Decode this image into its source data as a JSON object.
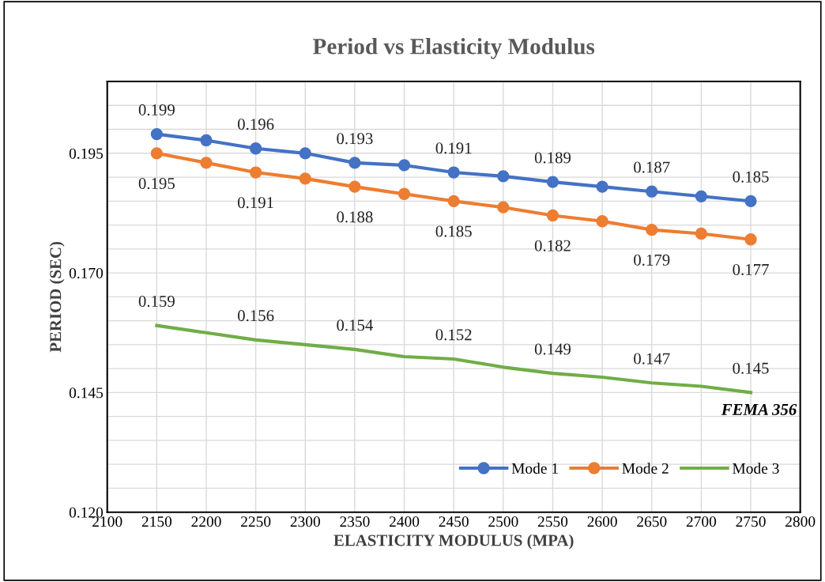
{
  "chart_data": {
    "type": "line",
    "title": "Period vs Elasticity Modulus",
    "xlabel": "ELASTICITY MODULUS (MPA)",
    "ylabel": "PERIOD (SEC)",
    "x": [
      2150,
      2200,
      2250,
      2300,
      2350,
      2400,
      2450,
      2500,
      2550,
      2600,
      2650,
      2700,
      2750
    ],
    "series": [
      {
        "name": "Mode 1",
        "color": "#4472c4",
        "marker": "circle",
        "values": [
          0.199,
          0.1977,
          0.196,
          0.195,
          0.193,
          0.1925,
          0.191,
          0.1902,
          0.189,
          0.188,
          0.187,
          0.186,
          0.185
        ],
        "value_labels": [
          "0.199",
          null,
          "0.196",
          null,
          "0.193",
          null,
          "0.191",
          null,
          "0.189",
          null,
          "0.187",
          null,
          "0.185"
        ]
      },
      {
        "name": "Mode 2",
        "color": "#ed7d31",
        "marker": "circle",
        "values": [
          0.195,
          0.193,
          0.191,
          0.1897,
          0.188,
          0.1865,
          0.185,
          0.1837,
          0.182,
          0.1808,
          0.179,
          0.1782,
          0.177
        ],
        "value_labels": [
          "0.195",
          null,
          "0.191",
          null,
          "0.188",
          null,
          "0.185",
          null,
          "0.182",
          null,
          "0.179",
          null,
          "0.177"
        ]
      },
      {
        "name": "Mode 3",
        "color": "#70ad47",
        "marker": "none",
        "values": [
          0.159,
          0.1575,
          0.156,
          0.155,
          0.154,
          0.1525,
          0.152,
          0.1503,
          0.149,
          0.1482,
          0.147,
          0.1463,
          0.145
        ],
        "value_labels": [
          "0.159",
          null,
          "0.156",
          null,
          "0.154",
          null,
          "0.152",
          null,
          "0.149",
          null,
          "0.147",
          null,
          "0.145"
        ]
      }
    ],
    "xlim": [
      2100,
      2800
    ],
    "xticks": [
      2100,
      2150,
      2200,
      2250,
      2300,
      2350,
      2400,
      2450,
      2500,
      2550,
      2600,
      2650,
      2700,
      2750,
      2800
    ],
    "ylim": [
      0.12,
      0.21
    ],
    "yticks": [
      {
        "value": 0.12,
        "label": "0.120"
      },
      {
        "value": 0.125,
        "label": null
      },
      {
        "value": 0.13,
        "label": null
      },
      {
        "value": 0.135,
        "label": null
      },
      {
        "value": 0.14,
        "label": null
      },
      {
        "value": 0.145,
        "label": "0.145"
      },
      {
        "value": 0.15,
        "label": null
      },
      {
        "value": 0.155,
        "label": null
      },
      {
        "value": 0.16,
        "label": null
      },
      {
        "value": 0.165,
        "label": null
      },
      {
        "value": 0.17,
        "label": "0.170"
      },
      {
        "value": 0.175,
        "label": null
      },
      {
        "value": 0.18,
        "label": null
      },
      {
        "value": 0.185,
        "label": null
      },
      {
        "value": 0.19,
        "label": null
      },
      {
        "value": 0.195,
        "label": "0.195"
      },
      {
        "value": 0.2,
        "label": null
      },
      {
        "value": 0.205,
        "label": null
      },
      {
        "value": 0.21,
        "label": null
      }
    ],
    "grid": true,
    "legend": "bottom right",
    "line_style": "solid",
    "annotations": [
      "FEMA 356"
    ]
  }
}
